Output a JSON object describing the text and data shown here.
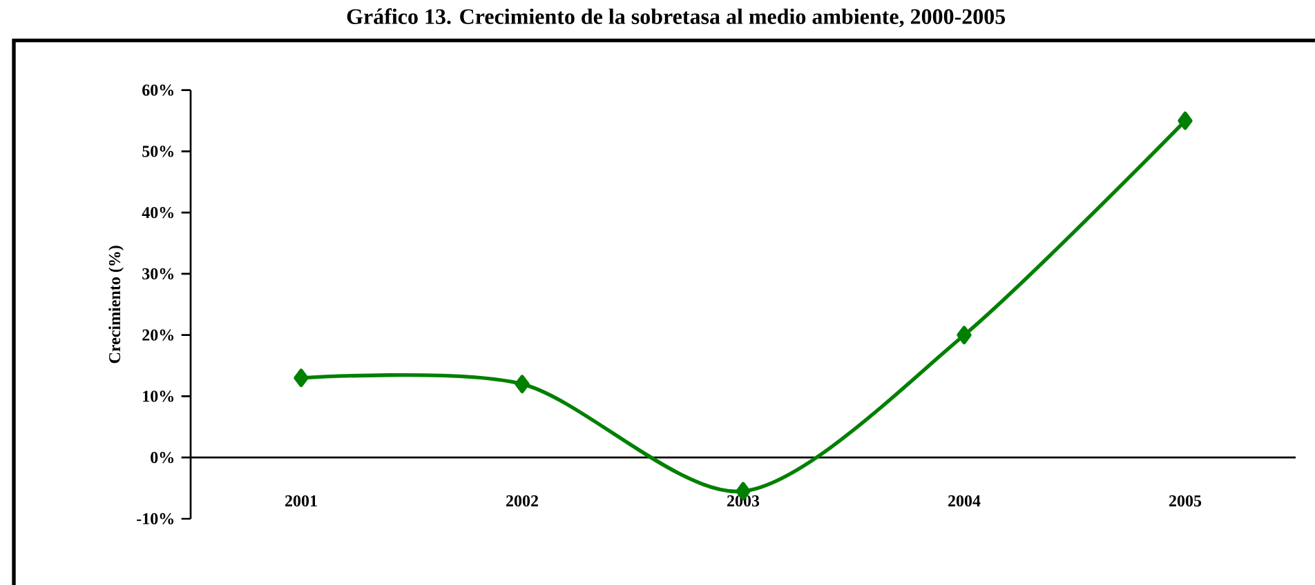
{
  "chart_data": {
    "type": "line",
    "title": "Gráfico 13. Crecimiento de la sobretasa al medio ambiente, 2000-2005",
    "ylabel": "Crecimiento (%)",
    "categories": [
      "2001",
      "2002",
      "2003",
      "2004",
      "2005"
    ],
    "series": [
      {
        "color": "#008000",
        "values": [
          13,
          12,
          -5.5,
          20,
          55
        ]
      }
    ],
    "ylim": [
      -10,
      60
    ],
    "yticks": [
      {
        "value": -10,
        "label": "-10%"
      },
      {
        "value": 0,
        "label": "0%"
      },
      {
        "value": 10,
        "label": "10%"
      },
      {
        "value": 20,
        "label": "20%"
      },
      {
        "value": 30,
        "label": "30%"
      },
      {
        "value": 40,
        "label": "40%"
      },
      {
        "value": 50,
        "label": "50%"
      },
      {
        "value": 60,
        "label": "60%"
      }
    ],
    "marker": "diamond",
    "line_style": "solid"
  }
}
